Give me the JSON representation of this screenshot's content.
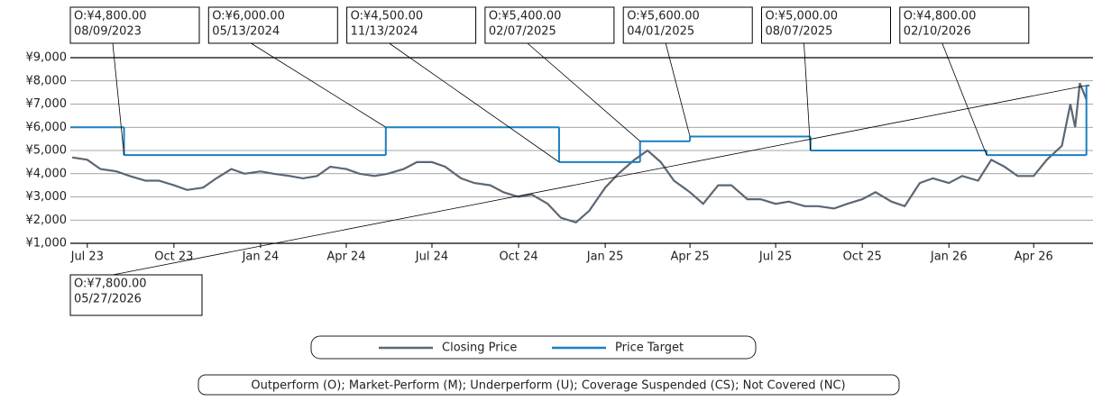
{
  "chart_data": {
    "type": "line",
    "xlim": [
      "2023-06-13",
      "2026-06-03"
    ],
    "xticks": [
      {
        "value": "2023-07-01",
        "label": "Jul 23"
      },
      {
        "value": "2023-10-01",
        "label": "Oct 23"
      },
      {
        "value": "2024-01-01",
        "label": "Jan 24"
      },
      {
        "value": "2024-04-01",
        "label": "Apr 24"
      },
      {
        "value": "2024-07-01",
        "label": "Jul 24"
      },
      {
        "value": "2024-10-01",
        "label": "Oct 24"
      },
      {
        "value": "2025-01-01",
        "label": "Jan 25"
      },
      {
        "value": "2025-04-01",
        "label": "Apr 25"
      },
      {
        "value": "2025-07-01",
        "label": "Jul 25"
      },
      {
        "value": "2025-10-01",
        "label": "Oct 25"
      },
      {
        "value": "2026-01-01",
        "label": "Jan 26"
      },
      {
        "value": "2026-04-01",
        "label": "Apr 26"
      }
    ],
    "ylim": [
      1000,
      9000
    ],
    "yticks": [
      {
        "value": 1000,
        "label": "¥1,000"
      },
      {
        "value": 2000,
        "label": "¥2,000"
      },
      {
        "value": 3000,
        "label": "¥3,000"
      },
      {
        "value": 4000,
        "label": "¥4,000"
      },
      {
        "value": 5000,
        "label": "¥5,000"
      },
      {
        "value": 6000,
        "label": "¥6,000"
      },
      {
        "value": 7000,
        "label": "¥7,000"
      },
      {
        "value": 8000,
        "label": "¥8,000"
      },
      {
        "value": 9000,
        "label": "¥9,000"
      }
    ],
    "grid": true,
    "series": [
      {
        "name": "Closing Price",
        "color": "#5b6773",
        "style": "line",
        "x": [
          "2023-06-15",
          "2023-07-01",
          "2023-07-15",
          "2023-08-01",
          "2023-08-15",
          "2023-09-01",
          "2023-09-15",
          "2023-10-01",
          "2023-10-15",
          "2023-11-01",
          "2023-11-15",
          "2023-12-01",
          "2023-12-15",
          "2024-01-01",
          "2024-01-15",
          "2024-02-01",
          "2024-02-15",
          "2024-03-01",
          "2024-03-15",
          "2024-04-01",
          "2024-04-15",
          "2024-05-01",
          "2024-05-15",
          "2024-06-01",
          "2024-06-15",
          "2024-07-01",
          "2024-07-15",
          "2024-08-01",
          "2024-08-15",
          "2024-09-01",
          "2024-09-15",
          "2024-10-01",
          "2024-10-15",
          "2024-11-01",
          "2024-11-15",
          "2024-12-01",
          "2024-12-15",
          "2025-01-01",
          "2025-01-15",
          "2025-02-01",
          "2025-02-15",
          "2025-03-01",
          "2025-03-15",
          "2025-04-01",
          "2025-04-15",
          "2025-05-01",
          "2025-05-15",
          "2025-06-01",
          "2025-06-15",
          "2025-07-01",
          "2025-07-15",
          "2025-08-01",
          "2025-08-15",
          "2025-09-01",
          "2025-09-15",
          "2025-10-01",
          "2025-10-15",
          "2025-11-01",
          "2025-11-15",
          "2025-12-01",
          "2025-12-15",
          "2026-01-01",
          "2026-01-15",
          "2026-02-01",
          "2026-02-15",
          "2026-03-01",
          "2026-03-15",
          "2026-04-01",
          "2026-04-15",
          "2026-05-01",
          "2026-05-10",
          "2026-05-15",
          "2026-05-20",
          "2026-05-27"
        ],
        "values": [
          4700,
          4600,
          4200,
          4100,
          3900,
          3700,
          3700,
          3500,
          3300,
          3400,
          3800,
          4200,
          4000,
          4100,
          4000,
          3900,
          3800,
          3900,
          4300,
          4200,
          4000,
          3900,
          4000,
          4200,
          4500,
          4500,
          4300,
          3800,
          3600,
          3500,
          3200,
          3000,
          3100,
          2700,
          2100,
          1900,
          2400,
          3400,
          4000,
          4600,
          5000,
          4500,
          3700,
          3200,
          2700,
          3500,
          3500,
          2900,
          2900,
          2700,
          2800,
          2600,
          2600,
          2500,
          2700,
          2900,
          3200,
          2800,
          2600,
          3600,
          3800,
          3600,
          3900,
          3700,
          4600,
          4300,
          3900,
          3900,
          4600,
          5200,
          7000,
          6000,
          7900,
          7200
        ]
      },
      {
        "name": "Price Target",
        "color": "#1a7fc1",
        "style": "step",
        "x": [
          "2023-06-13",
          "2023-08-09",
          "2024-05-13",
          "2024-11-13",
          "2025-02-07",
          "2025-04-01",
          "2025-08-07",
          "2026-02-10",
          "2026-05-27"
        ],
        "values": [
          6000,
          4800,
          6000,
          4500,
          5400,
          5600,
          5000,
          4800,
          7800
        ]
      }
    ],
    "annotations": [
      {
        "text": "O:¥4,800.00",
        "date": "08/09/2023"
      },
      {
        "text": "O:¥6,000.00",
        "date": "05/13/2024"
      },
      {
        "text": "O:¥4,500.00",
        "date": "11/13/2024"
      },
      {
        "text": "O:¥5,400.00",
        "date": "02/07/2025"
      },
      {
        "text": "O:¥5,600.00",
        "date": "04/01/2025"
      },
      {
        "text": "O:¥5,000.00",
        "date": "08/07/2025"
      },
      {
        "text": "O:¥4,800.00",
        "date": "02/10/2026"
      },
      {
        "text": "O:¥7,800.00",
        "date": "05/27/2026"
      }
    ],
    "footnote": "Outperform (O); Market-Perform (M); Underperform (U); Coverage Suspended (CS); Not Covered (NC)"
  }
}
